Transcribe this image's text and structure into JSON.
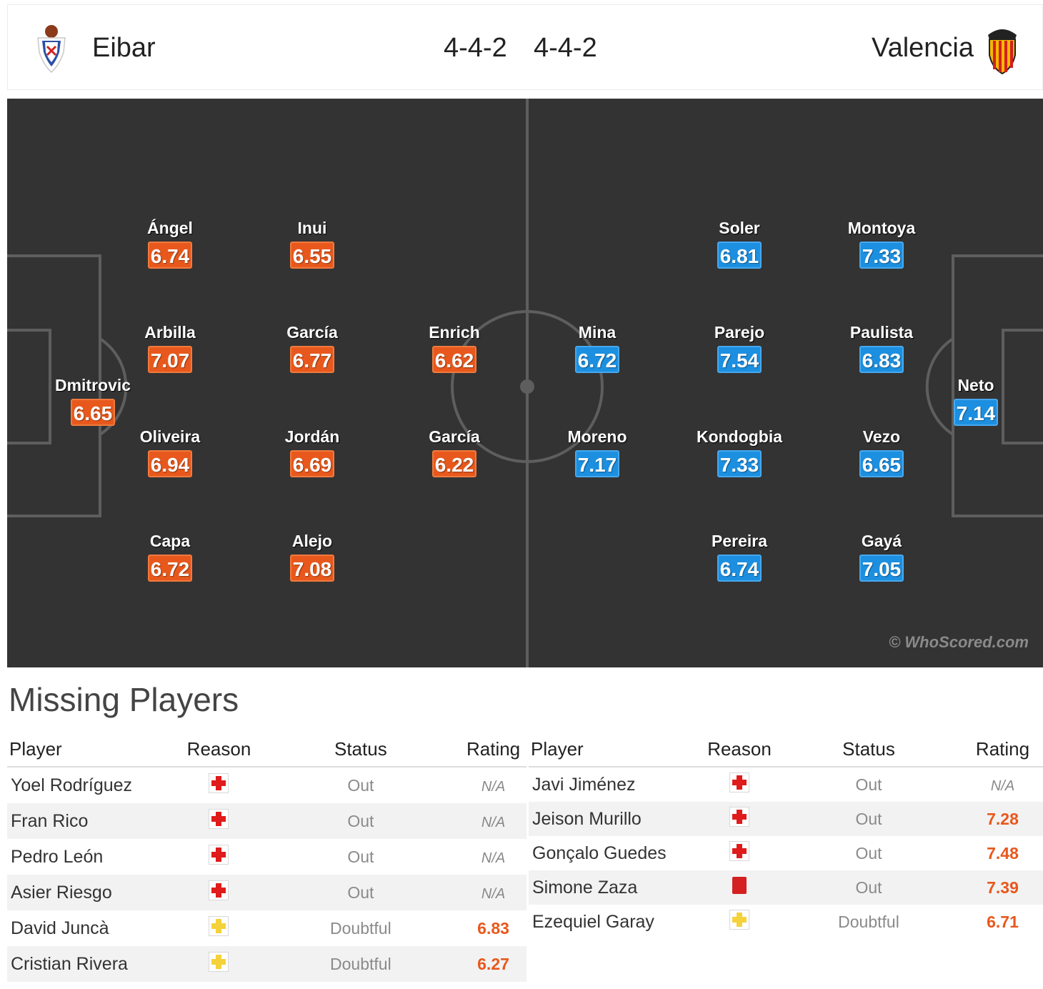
{
  "header": {
    "home_team": "Eibar",
    "away_team": "Valencia",
    "home_formation": "4-4-2",
    "away_formation": "4-4-2",
    "home_crest_icon": "eibar-crest-icon",
    "away_crest_icon": "valencia-crest-icon"
  },
  "colors": {
    "home_rating_bg": "#e8581c",
    "away_rating_bg": "#1c8fe0",
    "pitch_bg": "#333333",
    "injury_icon": "#e01b1b",
    "doubtful_icon": "#f5d23a",
    "red_card": "#d42020"
  },
  "pitch": {
    "watermark": "© WhoScored.com",
    "home_players": [
      {
        "name": "Dmitrovic",
        "rating": "6.65"
      },
      {
        "name": "Ángel",
        "rating": "6.74"
      },
      {
        "name": "Arbilla",
        "rating": "7.07"
      },
      {
        "name": "Oliveira",
        "rating": "6.94"
      },
      {
        "name": "Capa",
        "rating": "6.72"
      },
      {
        "name": "Inui",
        "rating": "6.55"
      },
      {
        "name": "García",
        "rating": "6.77"
      },
      {
        "name": "Jordán",
        "rating": "6.69"
      },
      {
        "name": "Alejo",
        "rating": "7.08"
      },
      {
        "name": "Enrich",
        "rating": "6.62"
      },
      {
        "name": "García",
        "rating": "6.22"
      }
    ],
    "away_players": [
      {
        "name": "Mina",
        "rating": "6.72"
      },
      {
        "name": "Moreno",
        "rating": "7.17"
      },
      {
        "name": "Soler",
        "rating": "6.81"
      },
      {
        "name": "Parejo",
        "rating": "7.54"
      },
      {
        "name": "Kondogbia",
        "rating": "7.33"
      },
      {
        "name": "Pereira",
        "rating": "6.74"
      },
      {
        "name": "Montoya",
        "rating": "7.33"
      },
      {
        "name": "Paulista",
        "rating": "6.83"
      },
      {
        "name": "Vezo",
        "rating": "6.65"
      },
      {
        "name": "Gayá",
        "rating": "7.05"
      },
      {
        "name": "Neto",
        "rating": "7.14"
      }
    ]
  },
  "missing": {
    "title": "Missing Players",
    "columns": {
      "player": "Player",
      "reason": "Reason",
      "status": "Status",
      "rating": "Rating"
    },
    "home": [
      {
        "player": "Yoel Rodríguez",
        "reason": "injury-icon",
        "status": "Out",
        "rating": "N/A"
      },
      {
        "player": "Fran Rico",
        "reason": "injury-icon",
        "status": "Out",
        "rating": "N/A"
      },
      {
        "player": "Pedro León",
        "reason": "injury-icon",
        "status": "Out",
        "rating": "N/A"
      },
      {
        "player": "Asier Riesgo",
        "reason": "injury-icon",
        "status": "Out",
        "rating": "N/A"
      },
      {
        "player": "David Juncà",
        "reason": "doubtful-icon",
        "status": "Doubtful",
        "rating": "6.83"
      },
      {
        "player": "Cristian Rivera",
        "reason": "doubtful-icon",
        "status": "Doubtful",
        "rating": "6.27"
      }
    ],
    "away": [
      {
        "player": "Javi Jiménez",
        "reason": "injury-icon",
        "status": "Out",
        "rating": "N/A"
      },
      {
        "player": "Jeison Murillo",
        "reason": "injury-icon",
        "status": "Out",
        "rating": "7.28"
      },
      {
        "player": "Gonçalo Guedes",
        "reason": "injury-icon",
        "status": "Out",
        "rating": "7.48"
      },
      {
        "player": "Simone Zaza",
        "reason": "red-card-icon",
        "status": "Out",
        "rating": "7.39"
      },
      {
        "player": "Ezequiel Garay",
        "reason": "doubtful-icon",
        "status": "Doubtful",
        "rating": "6.71"
      }
    ]
  }
}
